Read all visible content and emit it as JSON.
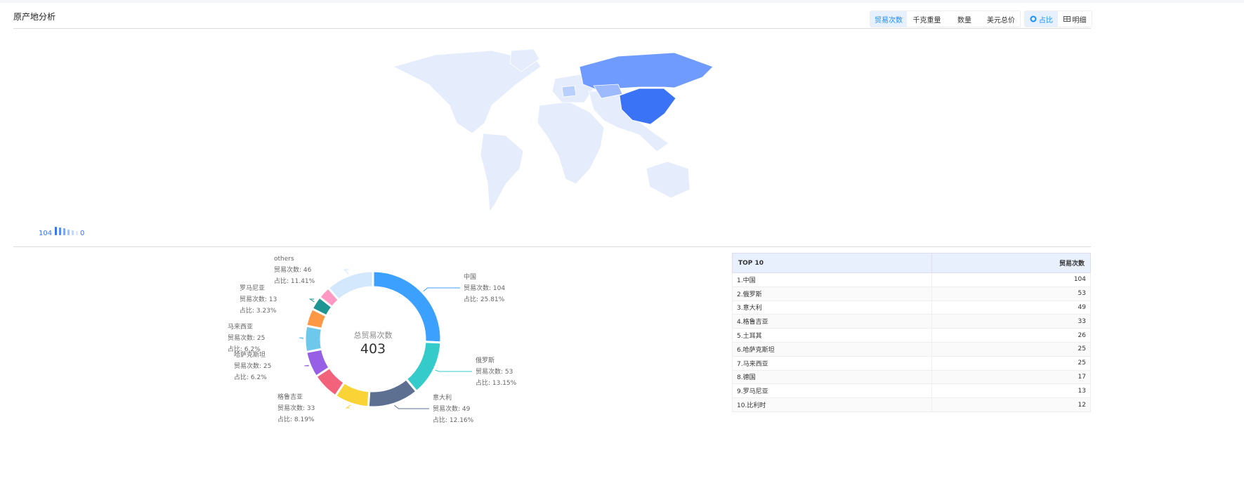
{
  "header": {
    "title": "原产地分析",
    "tabs": [
      "贸易次数",
      "千克重量",
      "数量",
      "美元总价"
    ],
    "views": [
      "占比",
      "明细"
    ]
  },
  "map_legend": {
    "max": 104,
    "min": 0
  },
  "chart_data": {
    "type": "pie",
    "center_label": "总贸易次数",
    "total": 403,
    "categories": [
      "中国",
      "俄罗斯",
      "意大利",
      "格鲁吉亚",
      "土耳其",
      "哈萨克斯坦",
      "马来西亚",
      "德国",
      "罗马尼亚",
      "比利时",
      "others"
    ],
    "values": [
      104,
      53,
      49,
      33,
      26,
      25,
      25,
      17,
      13,
      12,
      46
    ],
    "value_labels": [
      "贸易次数: 104",
      "贸易次数: 53",
      "贸易次数: 49",
      "贸易次数: 33",
      null,
      "贸易次数: 25",
      "贸易次数: 25",
      null,
      "贸易次数: 13",
      null,
      "贸易次数: 46"
    ],
    "share_labels": [
      "占比: 25.81%",
      "占比: 13.15%",
      "占比: 12.16%",
      "占比: 8.19%",
      null,
      "占比: 6.2%",
      "占比: 6.2%",
      null,
      "占比: 3.23%",
      null,
      "占比: 11.41%"
    ],
    "colors": [
      "#3ba0ff",
      "#36cbcb",
      "#5d7092",
      "#fad337",
      "#f2637b",
      "#975fe5",
      "#6dc8ec",
      "#ff9845",
      "#1e9493",
      "#ff99c3",
      "#d3e7fd"
    ]
  },
  "table": {
    "header": [
      "TOP 10",
      "贸易次数"
    ],
    "rows": [
      [
        "1.中国",
        104
      ],
      [
        "2.俄罗斯",
        53
      ],
      [
        "3.意大利",
        49
      ],
      [
        "4.格鲁吉亚",
        33
      ],
      [
        "5.土耳其",
        26
      ],
      [
        "6.哈萨克斯坦",
        25
      ],
      [
        "7.马来西亚",
        25
      ],
      [
        "8.德国",
        17
      ],
      [
        "9.罗马尼亚",
        13
      ],
      [
        "10.比利时",
        12
      ]
    ]
  }
}
